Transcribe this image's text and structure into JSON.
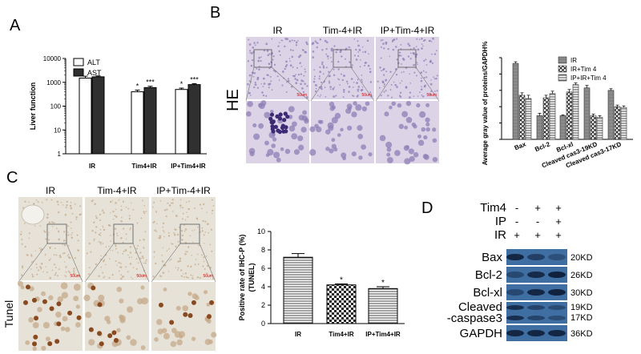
{
  "panels": {
    "A": "A",
    "B": "B",
    "C": "C",
    "D": "D"
  },
  "histology": {
    "groups": [
      "IR",
      "Tim-4+IR",
      "IP+Tim-4+IR"
    ],
    "he_label": "HE",
    "tunel_label": "Tunel",
    "scale_label": "50um",
    "colors": {
      "he_bg": "#dcd3e6",
      "he_cell": "#8e7fb5",
      "he_cluster": "#3a2b74",
      "tunel_bg": "#e6e2d8",
      "tunel_cell": "#c6a98a",
      "tunel_positive": "#8a4a1f"
    }
  },
  "western": {
    "header_rows": [
      {
        "label": "Tim4",
        "marks": [
          "-",
          "+",
          "+"
        ]
      },
      {
        "label": "IP",
        "marks": [
          "-",
          "-",
          "+"
        ]
      },
      {
        "label": "IR",
        "marks": [
          "+",
          "+",
          "+"
        ]
      }
    ],
    "bands": [
      {
        "name": "Bax",
        "sizes": [
          "20KD"
        ],
        "intensity": [
          0.85,
          0.55,
          0.35
        ],
        "bands": 1
      },
      {
        "name": "Bcl-2",
        "sizes": [
          "26KD"
        ],
        "intensity": [
          0.45,
          0.8,
          0.9
        ],
        "bands": 1
      },
      {
        "name": "Bcl-xl",
        "sizes": [
          "30KD"
        ],
        "intensity": [
          0.45,
          0.85,
          0.9
        ],
        "bands": 1
      },
      {
        "name_lines": [
          "Cleaved",
          "-caspase3"
        ],
        "sizes": [
          "19KD",
          "17KD"
        ],
        "intensity": [
          0.75,
          0.5,
          0.4
        ],
        "bands": 2
      },
      {
        "name": "GAPDH",
        "sizes": [
          "36KD"
        ],
        "intensity": [
          0.85,
          0.85,
          0.85
        ],
        "bands": 1
      }
    ],
    "colors": {
      "background": "#3f6ea2",
      "band": "#0c1a33"
    }
  },
  "chart_data": [
    {
      "id": "A",
      "type": "bar",
      "scale": "log",
      "ylabel": "Liver function",
      "ylim": [
        1,
        10000
      ],
      "yticks": [
        1,
        10,
        100,
        1000,
        10000
      ],
      "categories": [
        "IR",
        "Tim4+IR",
        "IP+Tim4+IR"
      ],
      "series": [
        {
          "name": "ALT",
          "values": [
            1500,
            400,
            500
          ],
          "errors": [
            300,
            70,
            70
          ],
          "sig": [
            "",
            "*",
            "*"
          ],
          "color": "#ffffff"
        },
        {
          "name": "AST",
          "values": [
            1700,
            600,
            800
          ],
          "errors": [
            150,
            80,
            80
          ],
          "sig": [
            "",
            "***",
            "***"
          ],
          "color": "#303030"
        }
      ],
      "legend": "top-left"
    },
    {
      "id": "B",
      "type": "bar",
      "ylabel": "Average gray value of proteins/GAPDH%",
      "ylim": [
        0,
        100
      ],
      "categories": [
        "Bax",
        "Bcl-2",
        "Bcl-xl",
        "Cleaved cas3-19KD",
        "Cleaved cas3-17KD"
      ],
      "series": [
        {
          "name": "IR",
          "values": [
            93,
            29,
            29,
            63,
            60
          ],
          "errors": [
            2,
            3,
            1,
            3,
            2
          ],
          "pattern": "solid-gray"
        },
        {
          "name": "IR+Tim 4",
          "values": [
            54,
            51,
            58,
            29,
            40
          ],
          "errors": [
            3,
            3,
            3,
            2,
            2
          ],
          "pattern": "crosshatch"
        },
        {
          "name": "IP+IR+Tim 4",
          "values": [
            50,
            56,
            67,
            27,
            39
          ],
          "errors": [
            4,
            3,
            2,
            2,
            2
          ],
          "pattern": "hlines"
        }
      ],
      "legend": "top-right"
    },
    {
      "id": "C",
      "type": "bar",
      "ylabel_lines": [
        "Positive rate of IHC-P (%)",
        "(TUNEL)"
      ],
      "ylim": [
        0,
        10
      ],
      "yticks": [
        0,
        2,
        4,
        6,
        8,
        10
      ],
      "categories": [
        "IR",
        "Tim4+IR",
        "IP+Tim4+IR"
      ],
      "series": [
        {
          "values": [
            7.2,
            4.2,
            3.8
          ],
          "errors": [
            0.4,
            0.1,
            0.2
          ],
          "sig": [
            "",
            "*",
            "*"
          ],
          "patterns": [
            "hlines",
            "checker",
            "hlines"
          ]
        }
      ]
    }
  ]
}
